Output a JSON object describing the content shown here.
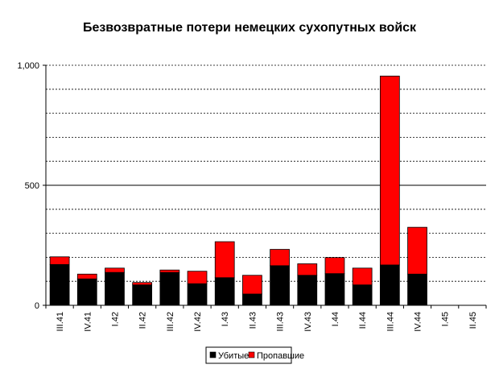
{
  "chart_data": {
    "type": "bar",
    "stacked": true,
    "title": "Безвозвратные потери немецких сухопутных войск",
    "xlabel": "",
    "ylabel": "",
    "categories": [
      "III.41",
      "IV.41",
      "I.42",
      "II.42",
      "III.42",
      "IV.42",
      "I.43",
      "II.43",
      "III.43",
      "IV.43",
      "I.44",
      "II.44",
      "III.44",
      "IV.44",
      "I.45",
      "II.45"
    ],
    "ylim": [
      0,
      1000
    ],
    "y_ticks": [
      {
        "value": 0,
        "label": "0"
      },
      {
        "value": 500,
        "label": "500"
      },
      {
        "value": 1000,
        "label": "1,000"
      }
    ],
    "gridlines": [
      100,
      200,
      300,
      400,
      500,
      600,
      700,
      800,
      900,
      1000
    ],
    "grid": true,
    "legend_position": "bottom",
    "series": [
      {
        "name": "Убитые",
        "color": "#000000",
        "values": [
          170,
          110,
          137,
          85,
          137,
          90,
          115,
          47,
          165,
          125,
          132,
          85,
          168,
          130,
          0,
          0
        ]
      },
      {
        "name": "Пропавшие",
        "color": "#ff0000",
        "values": [
          32,
          20,
          18,
          10,
          10,
          52,
          150,
          78,
          68,
          48,
          67,
          70,
          787,
          195,
          0,
          0
        ]
      }
    ]
  }
}
